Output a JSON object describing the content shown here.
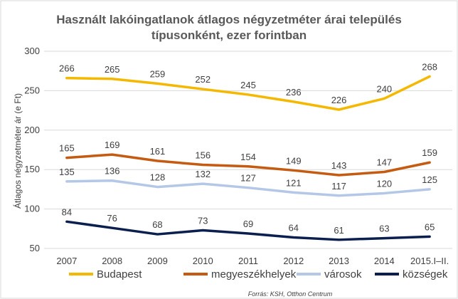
{
  "chart_data": {
    "type": "line",
    "title": "Használt lakóingatlanok átlagos négyzetméter árai település típusonként, ezer forintban",
    "title_lines": [
      "Használt lakóingatlanok átlagos négyzetméter árai település",
      "típusonként, ezer forintban"
    ],
    "xlabel": "",
    "ylabel": "Átlagos négyzetméter ár (e Ft)",
    "categories": [
      "2007",
      "2008",
      "2009",
      "2010",
      "2011",
      "2012",
      "2013",
      "2014",
      "2015.I–II."
    ],
    "ylim": [
      50,
      300
    ],
    "yticks": [
      "50",
      "100",
      "150",
      "200",
      "250",
      "300"
    ],
    "grid": true,
    "legend_position": "bottom",
    "series": [
      {
        "name": "Budapest",
        "color": "#F5B800",
        "values": [
          266,
          265,
          259,
          252,
          245,
          236,
          226,
          240,
          268
        ]
      },
      {
        "name": "megyeszékhelyek",
        "color": "#C55A11",
        "values": [
          165,
          169,
          161,
          156,
          154,
          149,
          143,
          147,
          159
        ]
      },
      {
        "name": "városok",
        "color": "#B4C7E7",
        "values": [
          135,
          136,
          128,
          132,
          127,
          121,
          117,
          120,
          125
        ]
      },
      {
        "name": "községek",
        "color": "#0B1F4F",
        "values": [
          84,
          76,
          68,
          73,
          69,
          64,
          61,
          63,
          65
        ]
      }
    ],
    "source": "Forrás: KSH, Otthon Centrum"
  }
}
